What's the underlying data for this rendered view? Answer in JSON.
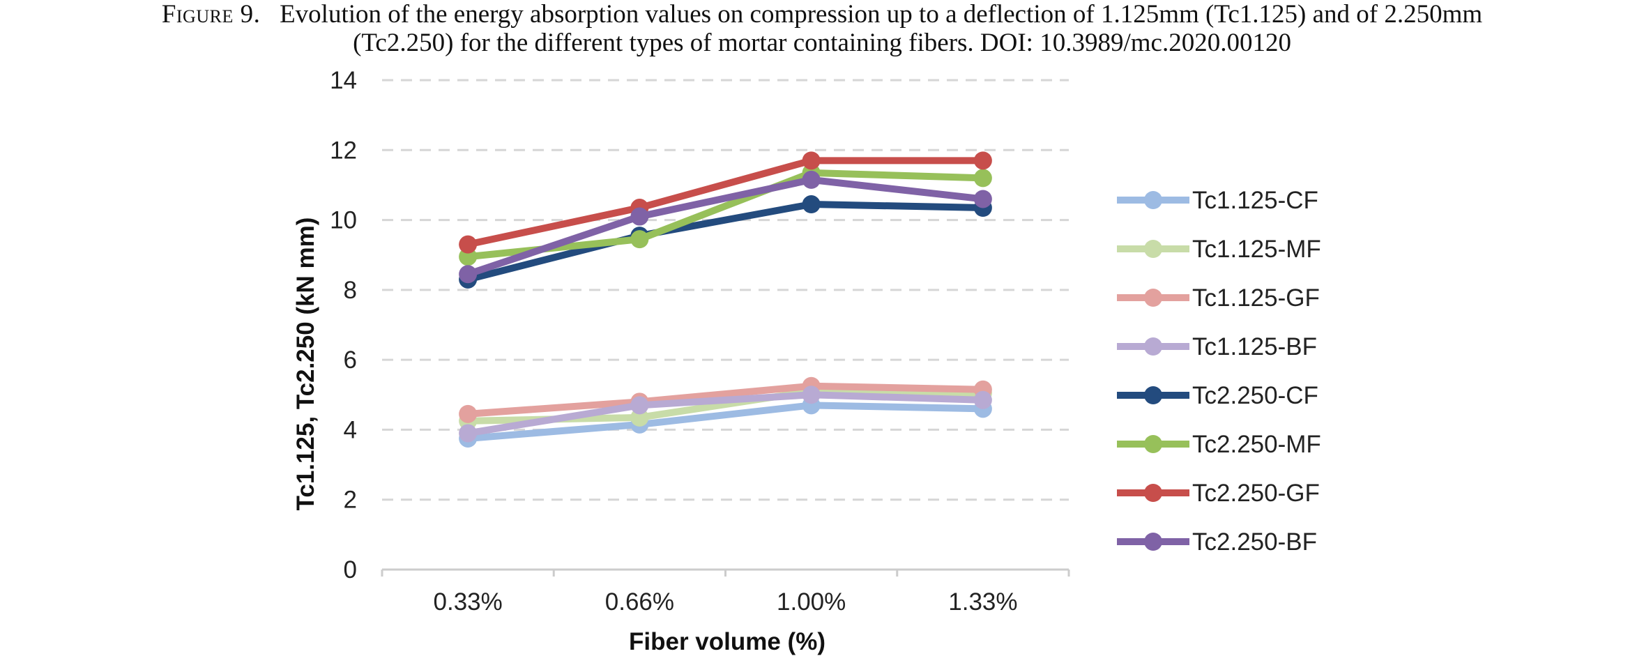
{
  "caption": {
    "label": "Figure 9.",
    "line1": "Evolution of the energy absorption values on compression up to a deflection of 1.125mm (Tc1.125) and of 2.250mm",
    "line2": "(Tc2.250) for the different types of mortar containing fibers. DOI: 10.3989/mc.2020.00120"
  },
  "chart_data": {
    "type": "line",
    "categories": [
      "0.33%",
      "0.66%",
      "1.00%",
      "1.33%"
    ],
    "xlabel": "Fiber volume (%)",
    "ylabel": "Tc1.125, Tc2.250 (kN mm)",
    "ylim": [
      0,
      14
    ],
    "yticks": [
      0,
      2,
      4,
      6,
      8,
      10,
      12,
      14
    ],
    "grid": true,
    "legend_position": "right",
    "series": [
      {
        "name": "Tc1.125-CF",
        "color": "#9dbbe3",
        "values": [
          3.75,
          4.15,
          4.7,
          4.6
        ]
      },
      {
        "name": "Tc1.125-MF",
        "color": "#c8dca8",
        "values": [
          4.25,
          4.35,
          5.1,
          5.05
        ]
      },
      {
        "name": "Tc1.125-GF",
        "color": "#e3a19e",
        "values": [
          4.45,
          4.8,
          5.25,
          5.15
        ]
      },
      {
        "name": "Tc1.125-BF",
        "color": "#b8aad3",
        "values": [
          3.9,
          4.7,
          5.0,
          4.85
        ]
      },
      {
        "name": "Tc2.250-CF",
        "color": "#234b7e",
        "values": [
          8.3,
          9.55,
          10.45,
          10.35
        ]
      },
      {
        "name": "Tc2.250-MF",
        "color": "#97c05a",
        "values": [
          8.95,
          9.45,
          11.35,
          11.2
        ]
      },
      {
        "name": "Tc2.250-GF",
        "color": "#c74e4b",
        "values": [
          9.3,
          10.35,
          11.7,
          11.7
        ]
      },
      {
        "name": "Tc2.250-BF",
        "color": "#7f62a6",
        "values": [
          8.45,
          10.1,
          11.15,
          10.6
        ]
      }
    ]
  }
}
